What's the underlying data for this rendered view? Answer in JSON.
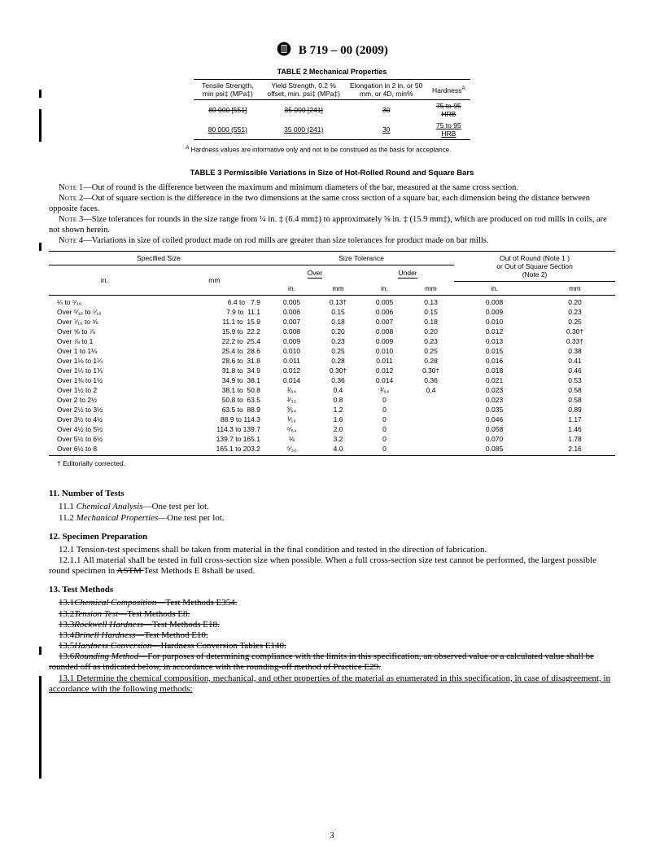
{
  "header": {
    "standard": "B 719 – 00  (2009)"
  },
  "table2": {
    "title": "TABLE 2  Mechanical Properties",
    "headers": {
      "tensile": "Tensile Strength, min psi‡ (MPa‡)",
      "yield": "Yield Strength, 0.2 % offset, min. psi‡ (MPa‡)",
      "elong": "Elongation in 2 in. or 50 mm, or 4D, min%",
      "hardness_l": "Hardness",
      "hardness_s": "A"
    },
    "rows": [
      {
        "tensile": "80 000 [551]",
        "yield": "35 000 [241]",
        "elong": "30",
        "hardness": "75 to 95 HRB",
        "style": "strike"
      },
      {
        "tensile": "80 000 (551)",
        "yield": "35 000 (241)",
        "elong": "30",
        "hardness": "75 to 95 HRB",
        "style": "under"
      }
    ],
    "footnote_sup": "A",
    "footnote": " Hardness values are informative only and not to be construed as the basis for acceptance."
  },
  "table3_title": "TABLE 3  Permissible Variations in Size of Hot-Rolled Round and Square Bars",
  "notes": {
    "n1_l": "Note",
    "n1_n": " 1—",
    "n1": "Out of round is the difference between the maximum and minimum diameters of the bar, measured at the same cross section.",
    "n2_l": "Note",
    "n2_n": " 2—",
    "n2": "Out of square section is the difference in the two dimensions at the same cross section of a square bar, each dimension being the distance between opposite faces.",
    "n3_l": "Note",
    "n3_n": " 3—",
    "n3": "Size tolerances for rounds in the size range from ¼ in. ‡ (6.4 mm‡) to approximately ⅝ in. ‡ (15.9 mm‡), which are produced on rod mills in coils, are not shown herein.",
    "n4_l": "Note",
    "n4_n": " 4—",
    "n4": "Variations in size of coiled product made on rod mills are greater than size tolerances for product made on bar mills."
  },
  "table3": {
    "h_size": "Specified Size",
    "h_tol": "Size Tolerance",
    "h_oor1": "Out of Round (Note 1 )",
    "h_oor2": "or Out of Square Section",
    "h_oor3": "(Note 2)",
    "h_over": "Over",
    "h_under": "Under",
    "h_in": "in.",
    "h_mm": "mm",
    "rows": [
      {
        "s": "¼ to ⁵⁄₁₆",
        "mm": "6.4 to   7.9",
        "oi": "0.005",
        "om": "0.13†",
        "ui": "0.005",
        "um": "0.13",
        "ri": "0.008",
        "rm": "0.20"
      },
      {
        "s": "Over ⁵⁄₁₆ to ⁷⁄₁₆",
        "mm": "7.9 to  11.1",
        "oi": "0.006",
        "om": "0.15",
        "ui": "0.006",
        "um": "0.15",
        "ri": "0.009",
        "rm": "0.23"
      },
      {
        "s": "Over ⁷⁄₁₆ to ⅝",
        "mm": "11.1 to  15.9",
        "oi": "0.007",
        "om": "0.18",
        "ui": "0.007",
        "um": "0.18",
        "ri": "0.010",
        "rm": "0.25"
      },
      {
        "s": "Over ⅝ to ⅞",
        "mm": "15.9 to  22.2",
        "oi": "0.008",
        "om": "0.20",
        "ui": "0.008",
        "um": "0.20",
        "ri": "0.012",
        "rm": "0.30†"
      },
      {
        "s": "Over ⅞ to 1",
        "mm": "22.2 to  25.4",
        "oi": "0.009",
        "om": "0.23",
        "ui": "0.009",
        "um": "0.23",
        "ri": "0.013",
        "rm": "0.33†"
      },
      {
        "s": "Over 1 to 1⅛",
        "mm": "25.4 to  28.6",
        "oi": "0.010",
        "om": "0.25",
        "ui": "0.010",
        "um": "0.25",
        "ri": "0.015",
        "rm": "0.38"
      },
      {
        "s": "Over 1⅛ to 1¼",
        "mm": "28.6 to  31.8",
        "oi": "0.011",
        "om": "0.28",
        "ui": "0.011",
        "um": "0.28",
        "ri": "0.016",
        "rm": "0.41"
      },
      {
        "s": "Over 1¼ to 1⅜",
        "mm": "31.8 to  34.9",
        "oi": "0.012",
        "om": "0.30†",
        "ui": "0.012",
        "um": "0.30†",
        "ri": "0.018",
        "rm": "0.46"
      },
      {
        "s": "Over 1⅜ to 1½",
        "mm": "34.9 to  38.1",
        "oi": "0.014",
        "om": "0.36",
        "ui": "0.014",
        "um": "0.36",
        "ri": "0.021",
        "rm": "0.53"
      },
      {
        "s": "Over 1½ to 2",
        "mm": "38.1 to  50.8",
        "oi": "¹⁄₆₄",
        "om": "0.4",
        "ui": "¹⁄₆₄",
        "um": "0.4",
        "ri": "0.023",
        "rm": "0.58"
      },
      {
        "s": "Over 2 to 2½",
        "mm": "50.8 to  63.5",
        "oi": "¹⁄₃₂",
        "om": "0.8",
        "ui": "0",
        "um": "",
        "ri": "0.023",
        "rm": "0.58"
      },
      {
        "s": "Over 2½ to 3½",
        "mm": "63.5 to  88.9",
        "oi": "³⁄₆₄",
        "om": "1.2",
        "ui": "0",
        "um": "",
        "ri": "0.035",
        "rm": "0.89"
      },
      {
        "s": "Over 3½ to 4½",
        "mm": "88.9 to 114.3",
        "oi": "¹⁄₁₆",
        "om": "1.6",
        "ui": "0",
        "um": "",
        "ri": "0.046",
        "rm": "1.17"
      },
      {
        "s": "Over 4½ to 5½",
        "mm": "114.3 to 139.7",
        "oi": "⁵⁄₆₄",
        "om": "2.0",
        "ui": "0",
        "um": "",
        "ri": "0.058",
        "rm": "1.46"
      },
      {
        "s": "Over 5½ to 6½",
        "mm": "139.7 to 165.1",
        "oi": "⅛",
        "om": "3.2",
        "ui": "0",
        "um": "",
        "ri": "0.070",
        "rm": "1.78"
      },
      {
        "s": "Over 6½ to 8",
        "mm": "165.1 to 203.2",
        "oi": "⁵⁄₃₂",
        "om": "4.0",
        "ui": "0",
        "um": "",
        "ri": "0.085",
        "rm": "2.16"
      }
    ],
    "dagger": "† Editorially corrected."
  },
  "sec11": {
    "h": "11.  Number of Tests",
    "p1a": "11.1 ",
    "p1b": "Chemical Analysis",
    "p1c": "—One test per lot.",
    "p2a": "11.2 ",
    "p2b": "Mechanical Properties",
    "p2c": "—One test per lot."
  },
  "sec12": {
    "h": "12.  Specimen Preparation",
    "p1": "12.1 Tension-test specimens shall be taken from material in the final condition and tested in the direction of fabrication.",
    "p2a": "12.1.1 All material shall be tested in full cross-section size when possible. When a full cross-section size test cannot be performed, the largest possible round specimen in ",
    "p2b": "ASTM ",
    "p2c": "Test Methods E 8shall be used."
  },
  "sec13": {
    "h": "13.  Test Methods",
    "s1a": "13.1",
    "s1b": "Chemical Composition",
    "s1c": "—Test Methods E354.",
    "s2a": "13.2",
    "s2b": "Tension Test",
    "s2c": "—Test Methods E8.",
    "s3a": "13.3",
    "s3b": "Rockwell Hardness",
    "s3c": "—Test Methods E18.",
    "s4a": "13.4",
    "s4b": "Brinell Hardness",
    "s4c": "—Test Method E10.",
    "s5a": "13.5",
    "s5b": "Hardness Conversion",
    "s5c": "—Hardness Conversion Tables E140.",
    "s6a": "13.6",
    "s6b": "Rounding Method",
    "s6c": "—For purposes of determining compliance with the limits in this specification, an observed value or a calculated value shall be rounded off as indicated below, in accordance with the rounding-off method of Practice E29.",
    "new": "13.1  Determine the chemical composition, mechanical, and other properties of the material as enumerated in this specification, in case of disagreement, in accordance with the following methods:"
  },
  "pagenum": "3"
}
